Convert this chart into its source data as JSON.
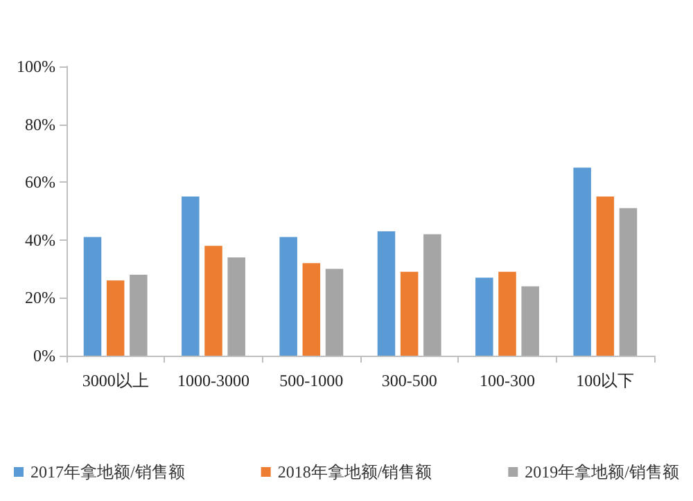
{
  "chart_data": {
    "type": "bar",
    "categories": [
      "3000以上",
      "1000-3000",
      "500-1000",
      "300-500",
      "100-300",
      "100以下"
    ],
    "series": [
      {
        "name": "2017年拿地额/销售额",
        "color": "#5b9bd5",
        "values": [
          41,
          55,
          41,
          43,
          27,
          65
        ]
      },
      {
        "name": "2018年拿地额/销售额",
        "color": "#ed7d31",
        "values": [
          26,
          38,
          32,
          29,
          29,
          55
        ]
      },
      {
        "name": "2019年拿地额/销售额",
        "color": "#a5a5a5",
        "values": [
          28,
          34,
          30,
          42,
          24,
          51
        ]
      }
    ],
    "ylim": [
      0,
      100
    ],
    "yticks": [
      {
        "value": 0,
        "label": "0%"
      },
      {
        "value": 20,
        "label": "20%"
      },
      {
        "value": 40,
        "label": "40%"
      },
      {
        "value": 60,
        "label": "60%"
      },
      {
        "value": 80,
        "label": "80%"
      },
      {
        "value": 100,
        "label": "100%"
      }
    ],
    "grid": false,
    "legend": "bottom"
  }
}
